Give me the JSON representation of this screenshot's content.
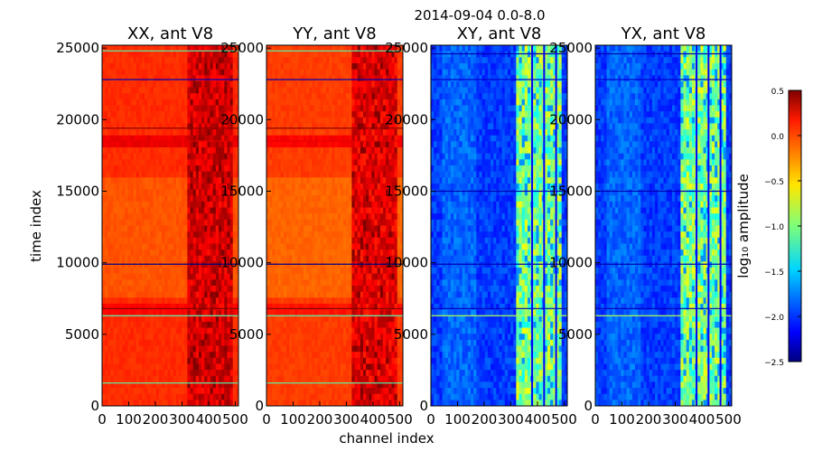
{
  "chart_data": {
    "type": "heatmap",
    "suptitle": "2014-09-04 0.0-8.0",
    "xlabel": "channel index",
    "ylabel": "time index",
    "xlim": [
      0,
      512
    ],
    "ylim": [
      0,
      25200
    ],
    "xticks": [
      "0",
      "100",
      "200",
      "300",
      "400",
      "500"
    ],
    "yticks": [
      "0",
      "5000",
      "10000",
      "15000",
      "20000",
      "25000"
    ],
    "panels": [
      {
        "title": "XX, ant V8",
        "base_log_amp": 0.0,
        "active_log_amp": 0.25
      },
      {
        "title": "YY, ant V8",
        "base_log_amp": -0.05,
        "active_log_amp": 0.2
      },
      {
        "title": "XY, ant V8",
        "base_log_amp": -1.95,
        "active_log_amp": -1.0
      },
      {
        "title": "YX, ant V8",
        "base_log_amp": -1.95,
        "active_log_amp": -1.0
      }
    ],
    "colorbar": {
      "label": "log₁₀ amplitude",
      "range": [
        -2.5,
        0.5
      ],
      "ticks": [
        "0.5",
        "0.0",
        "−0.5",
        "−1.0",
        "−1.5",
        "−2.0",
        "−2.5"
      ]
    }
  }
}
